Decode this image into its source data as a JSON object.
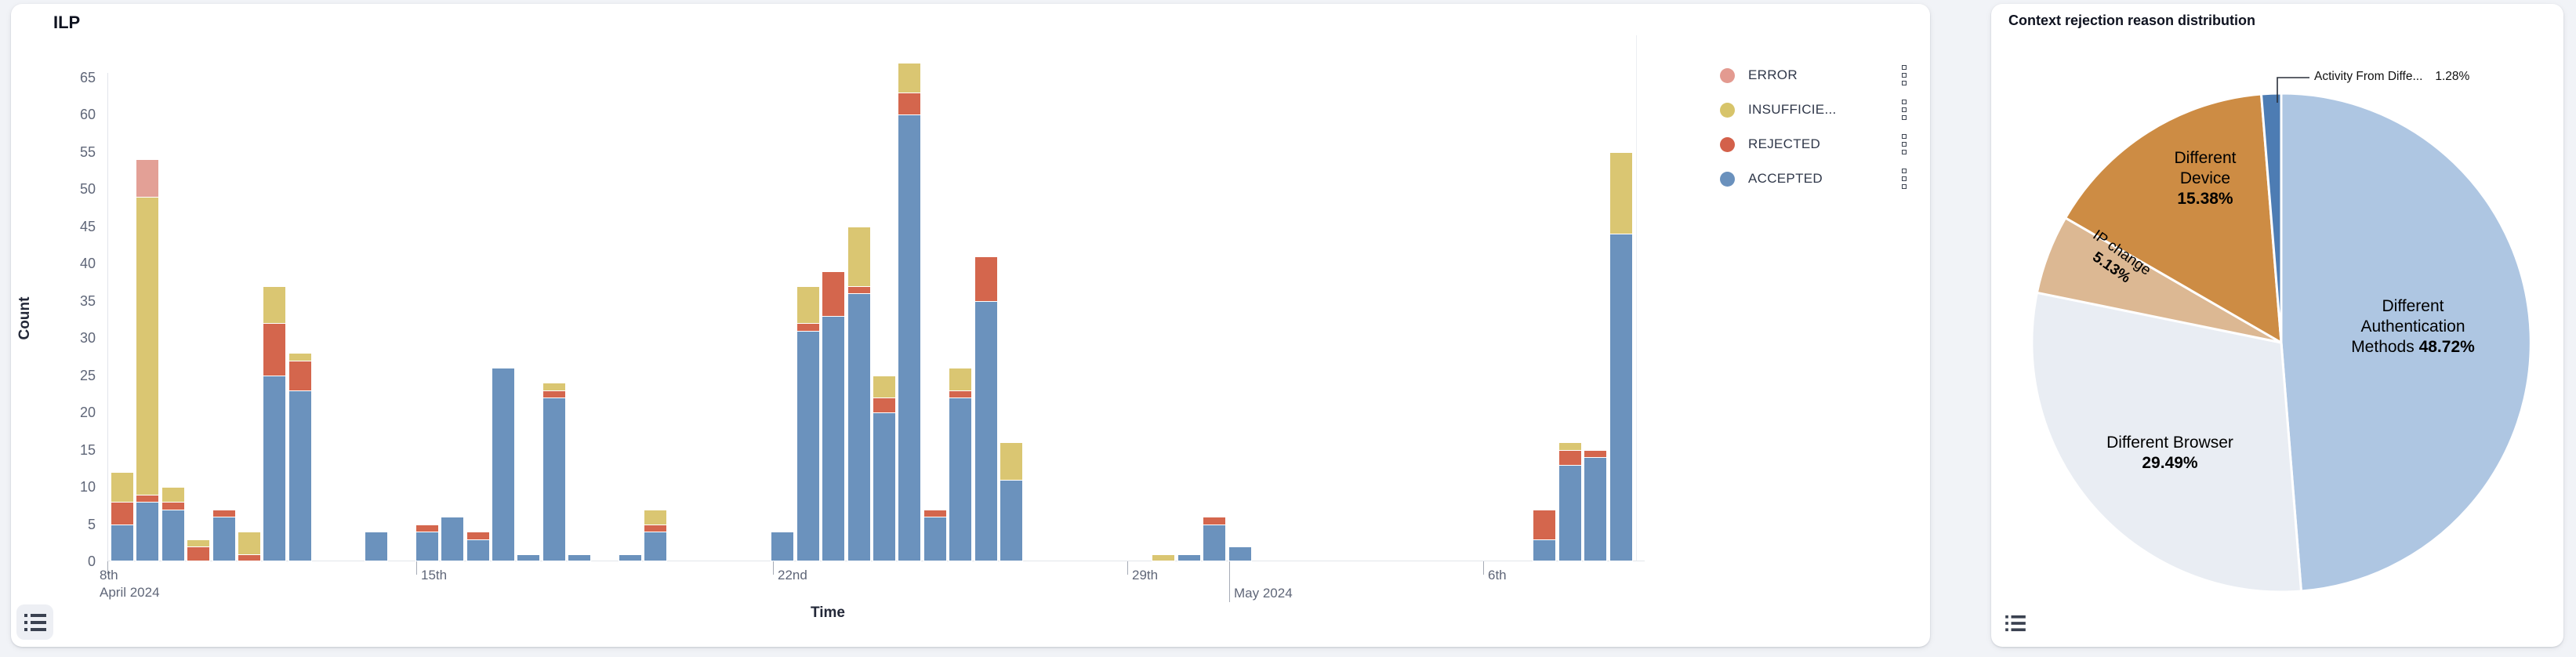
{
  "page": {
    "background": "#f1f3f7"
  },
  "ilp_panel": {
    "title": "ILP",
    "y_axis_label": "Count",
    "x_axis_label": "Time",
    "y_ticks": [
      0,
      5,
      10,
      15,
      20,
      25,
      30,
      35,
      40,
      45,
      50,
      55,
      60,
      65
    ],
    "x_ticks": [
      {
        "label": "8th",
        "sub": "April 2024",
        "pos": 0
      },
      {
        "label": "15th",
        "pos": 394
      },
      {
        "label": "22nd",
        "pos": 849
      },
      {
        "label": "29th",
        "pos": 1301
      },
      {
        "label": "May 2024",
        "pos": 1431,
        "major": true
      },
      {
        "label": "6th",
        "pos": 1755
      }
    ],
    "legend": [
      {
        "id": "error",
        "label": "ERROR",
        "color": "#e39a90"
      },
      {
        "id": "insufficient",
        "label": "INSUFFICIE...",
        "color": "#d7c46a"
      },
      {
        "id": "rejected",
        "label": "REJECTED",
        "color": "#d3604a"
      },
      {
        "id": "accepted",
        "label": "ACCEPTED",
        "color": "#6a91bd"
      }
    ],
    "chart_data": {
      "type": "bar",
      "stacked": true,
      "title": "ILP",
      "xlabel": "Time",
      "ylabel": "Count",
      "ylim": [
        0,
        65
      ],
      "x_unit": "12-hour bucket index from Apr 9 2024",
      "series_order_bottom_up": [
        "accepted",
        "rejected",
        "insufficient",
        "error"
      ],
      "colors": {
        "accepted": "#6b92bd",
        "rejected": "#d4664d",
        "insufficient": "#dac672",
        "error": "#e3a096"
      },
      "bars": [
        {
          "slot": 0,
          "accepted": 5,
          "rejected": 3,
          "insufficient": 4,
          "error": 0
        },
        {
          "slot": 1,
          "accepted": 8,
          "rejected": 1,
          "insufficient": 40,
          "error": 5
        },
        {
          "slot": 2,
          "accepted": 7,
          "rejected": 1,
          "insufficient": 2,
          "error": 0
        },
        {
          "slot": 3,
          "accepted": 0,
          "rejected": 2,
          "insufficient": 1,
          "error": 0
        },
        {
          "slot": 4,
          "accepted": 6,
          "rejected": 1,
          "insufficient": 0,
          "error": 0
        },
        {
          "slot": 5,
          "accepted": 0,
          "rejected": 1,
          "insufficient": 3,
          "error": 0
        },
        {
          "slot": 6,
          "accepted": 25,
          "rejected": 7,
          "insufficient": 5,
          "error": 0
        },
        {
          "slot": 7,
          "accepted": 23,
          "rejected": 4,
          "insufficient": 1,
          "error": 0
        },
        {
          "slot": 10,
          "accepted": 4,
          "rejected": 0,
          "insufficient": 0,
          "error": 0
        },
        {
          "slot": 12,
          "accepted": 4,
          "rejected": 1,
          "insufficient": 0,
          "error": 0
        },
        {
          "slot": 13,
          "accepted": 6,
          "rejected": 0,
          "insufficient": 0,
          "error": 0
        },
        {
          "slot": 14,
          "accepted": 3,
          "rejected": 1,
          "insufficient": 0,
          "error": 0
        },
        {
          "slot": 15,
          "accepted": 26,
          "rejected": 0,
          "insufficient": 0,
          "error": 0
        },
        {
          "slot": 16,
          "accepted": 1,
          "rejected": 0,
          "insufficient": 0,
          "error": 0
        },
        {
          "slot": 17,
          "accepted": 22,
          "rejected": 1,
          "insufficient": 1,
          "error": 0
        },
        {
          "slot": 18,
          "accepted": 1,
          "rejected": 0,
          "insufficient": 0,
          "error": 0
        },
        {
          "slot": 20,
          "accepted": 1,
          "rejected": 0,
          "insufficient": 0,
          "error": 0
        },
        {
          "slot": 21,
          "accepted": 4,
          "rejected": 1,
          "insufficient": 2,
          "error": 0
        },
        {
          "slot": 26,
          "accepted": 4,
          "rejected": 0,
          "insufficient": 0,
          "error": 0
        },
        {
          "slot": 27,
          "accepted": 31,
          "rejected": 1,
          "insufficient": 5,
          "error": 0
        },
        {
          "slot": 28,
          "accepted": 33,
          "rejected": 6,
          "insufficient": 0,
          "error": 0
        },
        {
          "slot": 29,
          "accepted": 36,
          "rejected": 1,
          "insufficient": 8,
          "error": 0
        },
        {
          "slot": 30,
          "accepted": 20,
          "rejected": 2,
          "insufficient": 3,
          "error": 0
        },
        {
          "slot": 31,
          "accepted": 60,
          "rejected": 3,
          "insufficient": 4,
          "error": 0
        },
        {
          "slot": 32,
          "accepted": 6,
          "rejected": 1,
          "insufficient": 0,
          "error": 0
        },
        {
          "slot": 33,
          "accepted": 22,
          "rejected": 1,
          "insufficient": 3,
          "error": 0
        },
        {
          "slot": 34,
          "accepted": 35,
          "rejected": 6,
          "insufficient": 0,
          "error": 0
        },
        {
          "slot": 35,
          "accepted": 11,
          "rejected": 0,
          "insufficient": 5,
          "error": 0
        },
        {
          "slot": 41,
          "accepted": 0,
          "rejected": 0,
          "insufficient": 1,
          "error": 0
        },
        {
          "slot": 42,
          "accepted": 1,
          "rejected": 0,
          "insufficient": 0,
          "error": 0
        },
        {
          "slot": 43,
          "accepted": 5,
          "rejected": 1,
          "insufficient": 0,
          "error": 0
        },
        {
          "slot": 44,
          "accepted": 2,
          "rejected": 0,
          "insufficient": 0,
          "error": 0
        },
        {
          "slot": 56,
          "accepted": 3,
          "rejected": 4,
          "insufficient": 0,
          "error": 0
        },
        {
          "slot": 57,
          "accepted": 13,
          "rejected": 2,
          "insufficient": 1,
          "error": 0
        },
        {
          "slot": 58,
          "accepted": 14,
          "rejected": 1,
          "insufficient": 0,
          "error": 0
        },
        {
          "slot": 59,
          "accepted": 44,
          "rejected": 0,
          "insufficient": 11,
          "error": 0
        }
      ]
    }
  },
  "pie_panel": {
    "title": "Context rejection reason distribution",
    "chart_data": {
      "type": "pie",
      "title": "Context rejection reason distribution",
      "start_angle_deg": 0,
      "clockwise": true,
      "slices": [
        {
          "id": "auth",
          "label_lines": [
            "Different",
            "Authentication",
            "Methods"
          ],
          "pct": "48.72%",
          "value": 48.72,
          "color": "#aec6e2"
        },
        {
          "id": "browser",
          "label_lines": [
            "Different Browser"
          ],
          "pct": "29.49%",
          "value": 29.49,
          "color": "#e9edf3"
        },
        {
          "id": "ip",
          "label_lines": [
            "IP change"
          ],
          "pct": "5.13%",
          "value": 5.13,
          "color": "#dcb893"
        },
        {
          "id": "device",
          "label_lines": [
            "Different",
            "Device"
          ],
          "pct": "15.38%",
          "value": 15.38,
          "color": "#cd8c44"
        },
        {
          "id": "activity",
          "label_lines": [
            "Activity From Diffe..."
          ],
          "pct": "1.28%",
          "value": 1.28,
          "color": "#4d7cb3"
        }
      ]
    }
  }
}
